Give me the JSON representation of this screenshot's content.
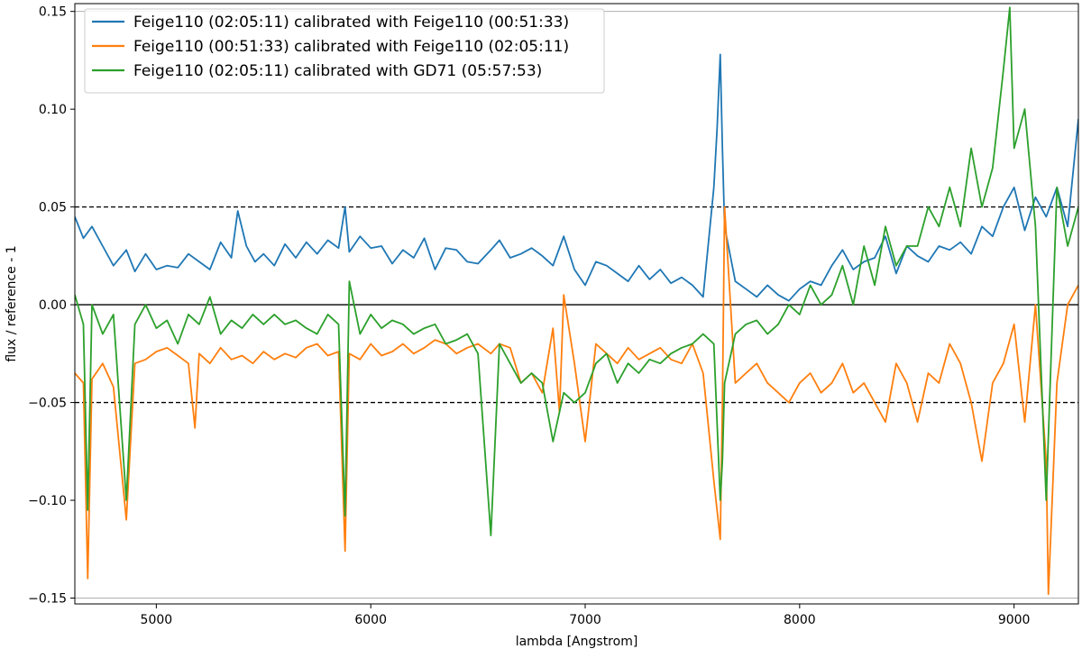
{
  "chart_data": {
    "type": "line",
    "xlabel": "lambda [Angstrom]",
    "ylabel": "flux / reference - 1",
    "xlim": [
      4620,
      9300
    ],
    "ylim": [
      -0.153,
      0.154
    ],
    "xticks": [
      5000,
      6000,
      7000,
      8000,
      9000
    ],
    "xtick_labels": [
      "5000",
      "6000",
      "7000",
      "8000",
      "9000"
    ],
    "yticks": [
      -0.15,
      -0.1,
      -0.05,
      0.0,
      0.05,
      0.1,
      0.15
    ],
    "ytick_labels": [
      "−0.15",
      "−0.10",
      "−0.05",
      "0.00",
      "0.05",
      "0.10",
      "0.15"
    ],
    "reference_lines": [
      {
        "y": 0.05,
        "style": "dashed",
        "color": "#000000"
      },
      {
        "y": -0.05,
        "style": "dashed",
        "color": "#000000"
      },
      {
        "y": 0.0,
        "style": "solid",
        "color": "#000000"
      },
      {
        "y": 0.15,
        "style": "solid",
        "color": "#b0b0b0"
      },
      {
        "y": -0.15,
        "style": "solid",
        "color": "#b0b0b0"
      }
    ],
    "legend_position": "top-left",
    "grid": false,
    "series": [
      {
        "name": "Feige110 (02:05:11) calibrated with Feige110 (00:51:33)",
        "color": "#1f77b4",
        "x": [
          4620,
          4660,
          4700,
          4750,
          4800,
          4860,
          4900,
          4950,
          5000,
          5050,
          5100,
          5150,
          5200,
          5250,
          5300,
          5350,
          5380,
          5420,
          5460,
          5500,
          5550,
          5600,
          5650,
          5700,
          5750,
          5800,
          5850,
          5880,
          5900,
          5950,
          6000,
          6050,
          6100,
          6150,
          6200,
          6250,
          6300,
          6350,
          6400,
          6450,
          6500,
          6560,
          6600,
          6650,
          6700,
          6750,
          6800,
          6850,
          6900,
          6950,
          7000,
          7050,
          7100,
          7150,
          7200,
          7250,
          7300,
          7350,
          7400,
          7450,
          7500,
          7550,
          7600,
          7615,
          7630,
          7640,
          7650,
          7700,
          7750,
          7800,
          7850,
          7900,
          7950,
          8000,
          8050,
          8100,
          8150,
          8200,
          8250,
          8300,
          8350,
          8400,
          8450,
          8500,
          8550,
          8600,
          8650,
          8700,
          8750,
          8800,
          8850,
          8900,
          8950,
          9000,
          9050,
          9100,
          9150,
          9200,
          9250,
          9300
        ],
        "y": [
          0.045,
          0.034,
          0.04,
          0.03,
          0.02,
          0.028,
          0.017,
          0.026,
          0.018,
          0.02,
          0.019,
          0.026,
          0.022,
          0.018,
          0.032,
          0.024,
          0.048,
          0.03,
          0.022,
          0.026,
          0.02,
          0.031,
          0.024,
          0.032,
          0.026,
          0.033,
          0.029,
          0.05,
          0.027,
          0.035,
          0.029,
          0.03,
          0.021,
          0.028,
          0.024,
          0.034,
          0.018,
          0.029,
          0.028,
          0.022,
          0.021,
          0.028,
          0.033,
          0.024,
          0.026,
          0.029,
          0.025,
          0.02,
          0.035,
          0.018,
          0.01,
          0.022,
          0.02,
          0.016,
          0.012,
          0.02,
          0.013,
          0.018,
          0.011,
          0.014,
          0.01,
          0.004,
          0.06,
          0.09,
          0.128,
          0.08,
          0.04,
          0.012,
          0.008,
          0.004,
          0.01,
          0.005,
          0.002,
          0.008,
          0.012,
          0.01,
          0.02,
          0.028,
          0.018,
          0.022,
          0.024,
          0.035,
          0.016,
          0.03,
          0.025,
          0.022,
          0.03,
          0.028,
          0.032,
          0.026,
          0.04,
          0.035,
          0.05,
          0.06,
          0.038,
          0.055,
          0.045,
          0.06,
          0.04,
          0.095
        ]
      },
      {
        "name": "Feige110 (00:51:33) calibrated with Feige110 (02:05:11)",
        "color": "#ff7f0e",
        "x": [
          4620,
          4660,
          4680,
          4700,
          4750,
          4800,
          4860,
          4900,
          4950,
          5000,
          5050,
          5100,
          5150,
          5180,
          5200,
          5250,
          5300,
          5350,
          5400,
          5450,
          5500,
          5550,
          5600,
          5650,
          5700,
          5750,
          5800,
          5850,
          5880,
          5900,
          5950,
          6000,
          6050,
          6100,
          6150,
          6200,
          6250,
          6300,
          6350,
          6400,
          6450,
          6500,
          6560,
          6600,
          6650,
          6700,
          6750,
          6800,
          6850,
          6880,
          6900,
          6950,
          7000,
          7050,
          7100,
          7150,
          7200,
          7250,
          7300,
          7350,
          7400,
          7450,
          7500,
          7550,
          7600,
          7630,
          7640,
          7650,
          7700,
          7750,
          7800,
          7850,
          7900,
          7950,
          8000,
          8050,
          8100,
          8150,
          8200,
          8250,
          8300,
          8350,
          8400,
          8450,
          8500,
          8550,
          8600,
          8650,
          8700,
          8750,
          8800,
          8850,
          8900,
          8950,
          9000,
          9050,
          9100,
          9150,
          9160,
          9200,
          9250,
          9300
        ],
        "y": [
          -0.035,
          -0.04,
          -0.14,
          -0.038,
          -0.03,
          -0.042,
          -0.11,
          -0.03,
          -0.028,
          -0.024,
          -0.022,
          -0.026,
          -0.03,
          -0.063,
          -0.025,
          -0.03,
          -0.022,
          -0.028,
          -0.026,
          -0.03,
          -0.024,
          -0.028,
          -0.025,
          -0.027,
          -0.022,
          -0.02,
          -0.026,
          -0.024,
          -0.126,
          -0.025,
          -0.028,
          -0.02,
          -0.026,
          -0.024,
          -0.02,
          -0.025,
          -0.022,
          -0.018,
          -0.02,
          -0.025,
          -0.022,
          -0.02,
          -0.025,
          -0.02,
          -0.022,
          -0.04,
          -0.035,
          -0.045,
          -0.012,
          -0.055,
          0.005,
          -0.03,
          -0.07,
          -0.02,
          -0.025,
          -0.03,
          -0.022,
          -0.028,
          -0.025,
          -0.022,
          -0.028,
          -0.03,
          -0.02,
          -0.035,
          -0.09,
          -0.12,
          -0.05,
          0.05,
          -0.04,
          -0.035,
          -0.03,
          -0.04,
          -0.045,
          -0.05,
          -0.04,
          -0.035,
          -0.045,
          -0.04,
          -0.03,
          -0.045,
          -0.04,
          -0.05,
          -0.06,
          -0.03,
          -0.04,
          -0.06,
          -0.035,
          -0.04,
          -0.02,
          -0.03,
          -0.05,
          -0.08,
          -0.04,
          -0.03,
          -0.01,
          -0.06,
          0.0,
          -0.08,
          -0.148,
          -0.04,
          0.0,
          0.01
        ]
      },
      {
        "name": "Feige110 (02:05:11) calibrated with GD71 (05:57:53)",
        "color": "#2ca02c",
        "x": [
          4620,
          4660,
          4680,
          4700,
          4750,
          4800,
          4860,
          4900,
          4950,
          5000,
          5050,
          5100,
          5150,
          5200,
          5250,
          5300,
          5350,
          5400,
          5450,
          5500,
          5550,
          5600,
          5650,
          5700,
          5750,
          5800,
          5850,
          5880,
          5900,
          5950,
          6000,
          6050,
          6100,
          6150,
          6200,
          6250,
          6300,
          6350,
          6400,
          6450,
          6500,
          6560,
          6600,
          6650,
          6700,
          6750,
          6800,
          6850,
          6900,
          6950,
          7000,
          7050,
          7100,
          7150,
          7200,
          7250,
          7300,
          7350,
          7400,
          7450,
          7500,
          7550,
          7600,
          7630,
          7640,
          7650,
          7700,
          7750,
          7800,
          7850,
          7900,
          7950,
          8000,
          8050,
          8100,
          8150,
          8200,
          8250,
          8300,
          8350,
          8400,
          8450,
          8500,
          8550,
          8600,
          8650,
          8700,
          8750,
          8800,
          8850,
          8900,
          8950,
          8980,
          9000,
          9050,
          9100,
          9150,
          9200,
          9250,
          9300
        ],
        "y": [
          0.005,
          -0.01,
          -0.105,
          0.0,
          -0.015,
          -0.005,
          -0.1,
          -0.01,
          0.0,
          -0.012,
          -0.008,
          -0.02,
          -0.005,
          -0.01,
          0.004,
          -0.015,
          -0.008,
          -0.012,
          -0.005,
          -0.01,
          -0.005,
          -0.01,
          -0.008,
          -0.012,
          -0.015,
          -0.005,
          -0.01,
          -0.108,
          0.012,
          -0.015,
          -0.005,
          -0.012,
          -0.008,
          -0.01,
          -0.015,
          -0.012,
          -0.01,
          -0.02,
          -0.018,
          -0.015,
          -0.025,
          -0.118,
          -0.02,
          -0.03,
          -0.04,
          -0.035,
          -0.04,
          -0.07,
          -0.045,
          -0.05,
          -0.045,
          -0.03,
          -0.025,
          -0.04,
          -0.03,
          -0.035,
          -0.028,
          -0.03,
          -0.025,
          -0.022,
          -0.02,
          -0.015,
          -0.02,
          -0.1,
          -0.08,
          -0.04,
          -0.015,
          -0.01,
          -0.008,
          -0.015,
          -0.01,
          0.0,
          -0.005,
          0.01,
          0.0,
          0.005,
          0.02,
          0.0,
          0.03,
          0.01,
          0.04,
          0.02,
          0.03,
          0.03,
          0.05,
          0.04,
          0.06,
          0.04,
          0.08,
          0.05,
          0.07,
          0.12,
          0.152,
          0.08,
          0.1,
          0.04,
          -0.1,
          0.06,
          0.03,
          0.05
        ]
      }
    ]
  }
}
